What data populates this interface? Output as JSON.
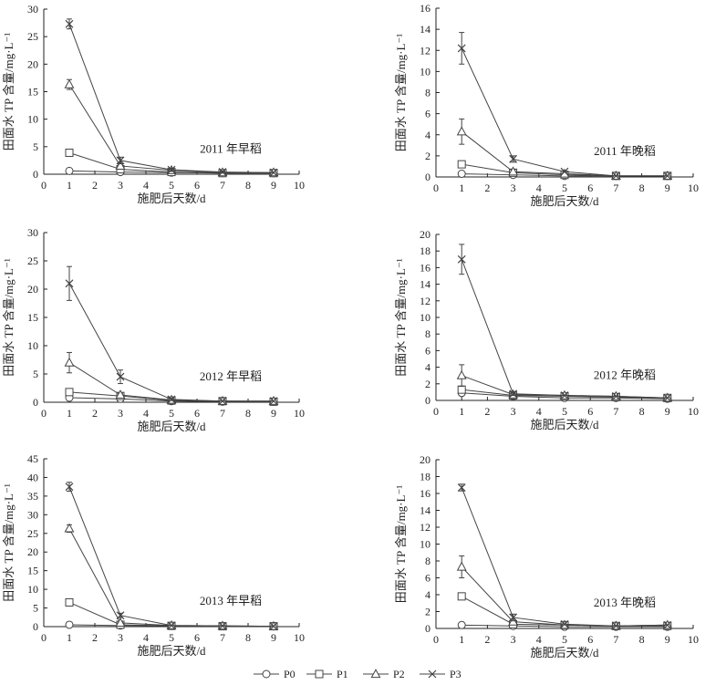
{
  "figure": {
    "legend": [
      {
        "name": "P0",
        "marker": "circle"
      },
      {
        "name": "P1",
        "marker": "square"
      },
      {
        "name": "P2",
        "marker": "triangle"
      },
      {
        "name": "P3",
        "marker": "x"
      }
    ]
  },
  "chart_data": [
    {
      "type": "line",
      "annotation": "2011 年早稻",
      "ylabel": "田面水 TP 含量/mg·L⁻¹",
      "xlabel": "施肥后天数/d",
      "xlim": [
        0,
        10
      ],
      "xticks": [
        0,
        1,
        2,
        3,
        4,
        5,
        6,
        7,
        8,
        9,
        10
      ],
      "ylim": [
        0,
        30
      ],
      "yticks": [
        0,
        5,
        10,
        15,
        20,
        25,
        30
      ],
      "x": [
        1,
        3,
        5,
        7,
        9
      ],
      "series": [
        {
          "name": "P0",
          "values": [
            0.6,
            0.4,
            0.3,
            0.2,
            0.2
          ],
          "error": [
            0.1,
            0.1,
            0.1,
            0.1,
            0.1
          ]
        },
        {
          "name": "P1",
          "values": [
            3.9,
            0.9,
            0.4,
            0.2,
            0.2
          ],
          "error": [
            0.4,
            0.2,
            0.1,
            0.1,
            0.1
          ]
        },
        {
          "name": "P2",
          "values": [
            16.3,
            1.5,
            0.7,
            0.3,
            0.3
          ],
          "error": [
            0.9,
            0.3,
            0.2,
            0.1,
            0.1
          ]
        },
        {
          "name": "P3",
          "values": [
            27.3,
            2.5,
            0.8,
            0.4,
            0.3
          ],
          "error": [
            0.9,
            0.6,
            0.3,
            0.2,
            0.1
          ]
        }
      ]
    },
    {
      "type": "line",
      "annotation": "2011 年晚稻",
      "ylabel": "田面水 TP 含量/mg·L⁻¹",
      "xlabel": "施肥后天数/d",
      "xlim": [
        0,
        10
      ],
      "xticks": [
        0,
        1,
        2,
        3,
        4,
        5,
        6,
        7,
        8,
        9,
        10
      ],
      "ylim": [
        0,
        16
      ],
      "yticks": [
        0,
        2,
        4,
        6,
        8,
        10,
        12,
        14,
        16
      ],
      "x": [
        1,
        3,
        5,
        7,
        9
      ],
      "series": [
        {
          "name": "P0",
          "values": [
            0.3,
            0.2,
            0.1,
            0.1,
            0.1
          ],
          "error": [
            0.1,
            0.1,
            0.05,
            0.05,
            0.05
          ]
        },
        {
          "name": "P1",
          "values": [
            1.2,
            0.4,
            0.2,
            0.1,
            0.1
          ],
          "error": [
            0.3,
            0.1,
            0.05,
            0.05,
            0.05
          ]
        },
        {
          "name": "P2",
          "values": [
            4.3,
            0.5,
            0.3,
            0.1,
            0.1
          ],
          "error": [
            1.2,
            0.2,
            0.1,
            0.05,
            0.05
          ]
        },
        {
          "name": "P3",
          "values": [
            12.2,
            1.7,
            0.5,
            0.1,
            0.1
          ],
          "error": [
            1.5,
            0.3,
            0.1,
            0.05,
            0.05
          ]
        }
      ]
    },
    {
      "type": "line",
      "annotation": "2012 年早稻",
      "ylabel": "田面水 TP 含量/mg·L⁻¹",
      "xlabel": "施肥后天数/d",
      "xlim": [
        0,
        10
      ],
      "xticks": [
        0,
        1,
        2,
        3,
        4,
        5,
        6,
        7,
        8,
        9,
        10
      ],
      "ylim": [
        0,
        30
      ],
      "yticks": [
        0,
        5,
        10,
        15,
        20,
        25,
        30
      ],
      "x": [
        1,
        3,
        5,
        7,
        9
      ],
      "series": [
        {
          "name": "P0",
          "values": [
            0.8,
            0.6,
            0.2,
            0.1,
            0.1
          ],
          "error": [
            0.2,
            0.1,
            0.1,
            0.05,
            0.05
          ]
        },
        {
          "name": "P1",
          "values": [
            1.8,
            1.1,
            0.3,
            0.2,
            0.1
          ],
          "error": [
            0.3,
            0.2,
            0.1,
            0.05,
            0.05
          ]
        },
        {
          "name": "P2",
          "values": [
            7.0,
            1.3,
            0.4,
            0.2,
            0.2
          ],
          "error": [
            1.8,
            0.3,
            0.1,
            0.05,
            0.05
          ]
        },
        {
          "name": "P3",
          "values": [
            21.0,
            4.5,
            0.5,
            0.2,
            0.2
          ],
          "error": [
            3.0,
            1.2,
            0.2,
            0.05,
            0.05
          ]
        }
      ]
    },
    {
      "type": "line",
      "annotation": "2012 年晚稻",
      "ylabel": "田面水 TP 含量/mg·L⁻¹",
      "xlabel": "施肥后天数/d",
      "xlim": [
        0,
        10
      ],
      "xticks": [
        0,
        1,
        2,
        3,
        4,
        5,
        6,
        7,
        8,
        9,
        10
      ],
      "ylim": [
        0,
        20
      ],
      "yticks": [
        0,
        2,
        4,
        6,
        8,
        10,
        12,
        14,
        16,
        18,
        20
      ],
      "x": [
        1,
        3,
        5,
        7,
        9
      ],
      "series": [
        {
          "name": "P0",
          "values": [
            0.9,
            0.5,
            0.3,
            0.3,
            0.2
          ],
          "error": [
            0.2,
            0.1,
            0.1,
            0.1,
            0.05
          ]
        },
        {
          "name": "P1",
          "values": [
            1.3,
            0.6,
            0.5,
            0.4,
            0.3
          ],
          "error": [
            0.3,
            0.1,
            0.1,
            0.1,
            0.05
          ]
        },
        {
          "name": "P2",
          "values": [
            3.0,
            0.7,
            0.6,
            0.5,
            0.3
          ],
          "error": [
            1.3,
            0.2,
            0.1,
            0.1,
            0.05
          ]
        },
        {
          "name": "P3",
          "values": [
            17.0,
            0.8,
            0.6,
            0.5,
            0.3
          ],
          "error": [
            1.8,
            0.2,
            0.1,
            0.1,
            0.05
          ]
        }
      ]
    },
    {
      "type": "line",
      "annotation": "2013 年早稻",
      "ylabel": "田面水 TP 含量/mg·L⁻¹",
      "xlabel": "施肥后天数/d",
      "xlim": [
        0,
        10
      ],
      "xticks": [
        0,
        1,
        2,
        3,
        4,
        5,
        6,
        7,
        8,
        9,
        10
      ],
      "ylim": [
        0,
        45
      ],
      "yticks": [
        0,
        5,
        10,
        15,
        20,
        25,
        30,
        35,
        40,
        45
      ],
      "x": [
        1,
        3,
        5,
        7,
        9
      ],
      "series": [
        {
          "name": "P0",
          "values": [
            0.5,
            0.3,
            0.2,
            0.1,
            0.1
          ],
          "error": [
            0.1,
            0.1,
            0.05,
            0.05,
            0.05
          ]
        },
        {
          "name": "P1",
          "values": [
            6.5,
            0.5,
            0.2,
            0.1,
            0.1
          ],
          "error": [
            0.6,
            0.1,
            0.05,
            0.05,
            0.05
          ]
        },
        {
          "name": "P2",
          "values": [
            26.3,
            1.0,
            0.3,
            0.2,
            0.1
          ],
          "error": [
            1.0,
            0.2,
            0.1,
            0.05,
            0.05
          ]
        },
        {
          "name": "P3",
          "values": [
            37.5,
            3.0,
            0.3,
            0.2,
            0.1
          ],
          "error": [
            1.2,
            0.6,
            0.1,
            0.05,
            0.05
          ]
        }
      ]
    },
    {
      "type": "line",
      "annotation": "2013 年晚稻",
      "ylabel": "田面水 TP 含量/mg·L⁻¹",
      "xlabel": "施肥后天数/d",
      "xlim": [
        0,
        10
      ],
      "xticks": [
        0,
        1,
        2,
        3,
        4,
        5,
        6,
        7,
        8,
        9,
        10
      ],
      "ylim": [
        0,
        20
      ],
      "yticks": [
        0,
        2,
        4,
        6,
        8,
        10,
        12,
        14,
        16,
        18,
        20
      ],
      "x": [
        1,
        3,
        5,
        7,
        9
      ],
      "series": [
        {
          "name": "P0",
          "values": [
            0.4,
            0.3,
            0.2,
            0.2,
            0.2
          ],
          "error": [
            0.1,
            0.05,
            0.05,
            0.05,
            0.05
          ]
        },
        {
          "name": "P1",
          "values": [
            3.8,
            0.5,
            0.4,
            0.3,
            0.3
          ],
          "error": [
            0.3,
            0.1,
            0.1,
            0.05,
            0.05
          ]
        },
        {
          "name": "P2",
          "values": [
            7.3,
            0.8,
            0.4,
            0.3,
            0.4
          ],
          "error": [
            1.3,
            0.2,
            0.1,
            0.1,
            0.1
          ]
        },
        {
          "name": "P3",
          "values": [
            16.7,
            1.3,
            0.5,
            0.3,
            0.4
          ],
          "error": [
            0.4,
            0.4,
            0.1,
            0.1,
            0.1
          ]
        }
      ]
    }
  ]
}
